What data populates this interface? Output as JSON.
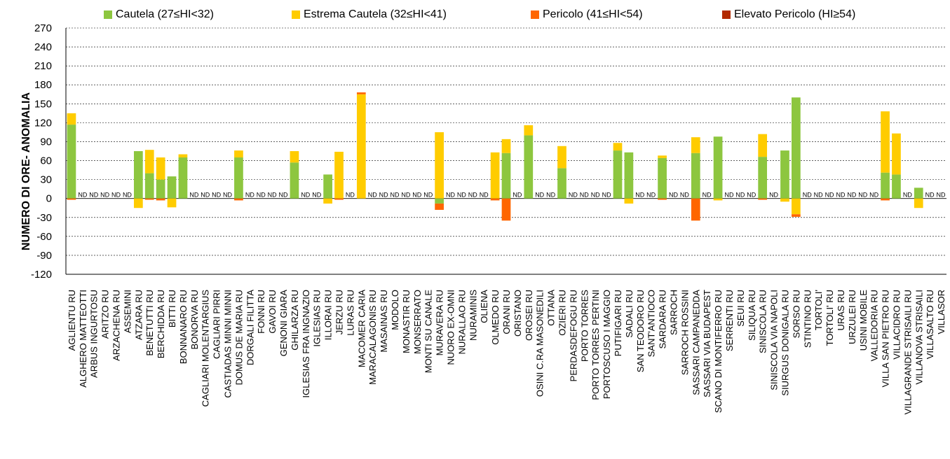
{
  "chart_data": {
    "type": "bar",
    "stacked": true,
    "ylabel": "NUMERO DI ORE- ANOMALIA",
    "ylim": [
      -120,
      270
    ],
    "yticks": [
      270,
      240,
      210,
      180,
      150,
      120,
      90,
      60,
      30,
      0,
      -30,
      -60,
      -90,
      -120
    ],
    "grid": true,
    "legend_position": "top",
    "nd_label": "ND",
    "series": [
      {
        "name": "Cautela (27≤HI<32)",
        "color": "#8DC63F"
      },
      {
        "name": "Estrema Cautela (32≤HI<41)",
        "color": "#FFCC00"
      },
      {
        "name": "Pericolo (41≤HI<54)",
        "color": "#FF6600"
      },
      {
        "name": "Elevato Pericolo (HI≥54)",
        "color": "#B22A00"
      }
    ],
    "categories": [
      {
        "name": "AGLIENTU RU",
        "pos": [
          117,
          18,
          0,
          0
        ],
        "neg": [
          0,
          0,
          2,
          0
        ]
      },
      {
        "name": "ALGHERO MATTEOTTI",
        "nd": true
      },
      {
        "name": "ARBUS INGURTOSU",
        "nd": true
      },
      {
        "name": "ARITZO RU",
        "nd": true
      },
      {
        "name": "ARZACHENA RU",
        "nd": true
      },
      {
        "name": "ASSEMINI",
        "nd": true
      },
      {
        "name": "ATZARA RU",
        "pos": [
          75,
          0,
          0,
          0
        ],
        "neg": [
          0,
          15,
          0,
          0
        ]
      },
      {
        "name": "BENETUTTI RU",
        "pos": [
          40,
          37,
          0,
          0
        ],
        "neg": [
          0,
          0,
          2,
          0
        ]
      },
      {
        "name": "BERCHIDDA RU",
        "pos": [
          30,
          35,
          0,
          0
        ],
        "neg": [
          0,
          0,
          3,
          0
        ]
      },
      {
        "name": "BITTI RU",
        "pos": [
          35,
          0,
          0,
          0
        ],
        "neg": [
          0,
          14,
          0,
          0
        ]
      },
      {
        "name": "BONNANARO RU",
        "pos": [
          65,
          5,
          0,
          0
        ],
        "neg": [
          0,
          0,
          0,
          0
        ]
      },
      {
        "name": "BONORVA RU",
        "nd": true
      },
      {
        "name": "CAGLIARI MOLENTARGIUS",
        "nd": true
      },
      {
        "name": "CAGLIARI PIRRI",
        "nd": true
      },
      {
        "name": "CASTIADAS MINNI MINNI",
        "nd": true
      },
      {
        "name": "DOMUS DE MARIA RU",
        "pos": [
          65,
          11,
          0,
          0
        ],
        "neg": [
          0,
          0,
          3,
          0
        ]
      },
      {
        "name": "DORGALI FILITTA",
        "nd": true
      },
      {
        "name": "FONNI RU",
        "nd": true
      },
      {
        "name": "GAVOI RU",
        "nd": true
      },
      {
        "name": "GENONI GIARA",
        "nd": true
      },
      {
        "name": "GHILARZA RU",
        "pos": [
          57,
          18,
          0,
          0
        ],
        "neg": [
          0,
          0,
          0,
          0
        ]
      },
      {
        "name": "IGLESIAS FRA INGNAZIO",
        "nd": true
      },
      {
        "name": "IGLESIAS RU",
        "nd": true
      },
      {
        "name": "ILLORAI RU",
        "pos": [
          38,
          0,
          0,
          0
        ],
        "neg": [
          0,
          8,
          0,
          0
        ]
      },
      {
        "name": "JERZU RU",
        "pos": [
          0,
          74,
          0,
          0
        ],
        "neg": [
          0,
          0,
          2,
          0
        ]
      },
      {
        "name": "LURAS RU",
        "nd": true
      },
      {
        "name": "MACOMER CARIA",
        "pos": [
          0,
          165,
          3,
          0
        ],
        "neg": [
          0,
          0,
          0,
          0
        ]
      },
      {
        "name": "MARACALAGONIS RU",
        "nd": true
      },
      {
        "name": "MASAINAS RU",
        "nd": true
      },
      {
        "name": "MODOLO",
        "nd": true
      },
      {
        "name": "MONASTIR RU",
        "nd": true
      },
      {
        "name": "MONSERRATO",
        "nd": true
      },
      {
        "name": "MONTI SU CANALE",
        "nd": true
      },
      {
        "name": "MURAVERA RU",
        "pos": [
          0,
          105,
          0,
          0
        ],
        "neg": [
          8,
          0,
          10,
          0
        ]
      },
      {
        "name": "NUORO EX-OMNI",
        "nd": true
      },
      {
        "name": "NURALLAO RU",
        "nd": true
      },
      {
        "name": "NURAMINIS",
        "nd": true
      },
      {
        "name": "OLIENA",
        "nd": true
      },
      {
        "name": "OLMEDO RU",
        "pos": [
          0,
          73,
          0,
          0
        ],
        "neg": [
          0,
          0,
          3,
          0
        ]
      },
      {
        "name": "ORANI RU",
        "pos": [
          72,
          22,
          0,
          0
        ],
        "neg": [
          0,
          0,
          35,
          0
        ]
      },
      {
        "name": "ORISTANO",
        "nd": true
      },
      {
        "name": "OROSEI RU",
        "pos": [
          100,
          16,
          0,
          0
        ],
        "neg": [
          0,
          0,
          0,
          0
        ]
      },
      {
        "name": "OSINI C.RA MASONEDILI",
        "nd": true
      },
      {
        "name": "OTTANA",
        "nd": true
      },
      {
        "name": "OZIERI RU",
        "pos": [
          48,
          35,
          0,
          0
        ],
        "neg": [
          0,
          0,
          0,
          0
        ]
      },
      {
        "name": "PERDASDEFOGU RU",
        "nd": true
      },
      {
        "name": "PORTO TORRES",
        "nd": true
      },
      {
        "name": "PORTO TORRES PERTINI",
        "nd": true
      },
      {
        "name": "PORTOSCUSO I MAGGIO",
        "nd": true
      },
      {
        "name": "PUTIFIGARI RU",
        "pos": [
          76,
          12,
          0,
          0
        ],
        "neg": [
          0,
          0,
          0,
          0
        ]
      },
      {
        "name": "SADALI RU",
        "pos": [
          73,
          0,
          0,
          0
        ],
        "neg": [
          0,
          8,
          0,
          0
        ]
      },
      {
        "name": "SAN TEODORO RU",
        "nd": true
      },
      {
        "name": "SANT'ANTIOCO",
        "nd": true
      },
      {
        "name": "SARDARA RU",
        "pos": [
          64,
          4,
          0,
          0
        ],
        "neg": [
          0,
          0,
          2,
          0
        ]
      },
      {
        "name": "SARROCH",
        "nd": true
      },
      {
        "name": "SARROCH ROSSINI",
        "nd": true
      },
      {
        "name": "SASSARI CAMPANEDDA",
        "pos": [
          72,
          25,
          0,
          0
        ],
        "neg": [
          0,
          0,
          35,
          0
        ]
      },
      {
        "name": "SASSARI VIA BUDAPEST",
        "nd": true
      },
      {
        "name": "SCANO DI MONTIFERRO RU",
        "pos": [
          98,
          0,
          0,
          0
        ],
        "neg": [
          0,
          3,
          0,
          0
        ]
      },
      {
        "name": "SERRENTI RU",
        "nd": true
      },
      {
        "name": "SEUI RU",
        "nd": true
      },
      {
        "name": "SILIQUA RU",
        "nd": true
      },
      {
        "name": "SINISCOLA RU",
        "pos": [
          66,
          36,
          0,
          0
        ],
        "neg": [
          0,
          0,
          2,
          0
        ]
      },
      {
        "name": "SINISCOLA VIA NAPOLI",
        "nd": true
      },
      {
        "name": "SIURGUS DONIGALA RU",
        "pos": [
          76,
          0,
          0,
          0
        ],
        "neg": [
          0,
          5,
          0,
          0
        ]
      },
      {
        "name": "SORSO RU",
        "pos": [
          160,
          0,
          0,
          0
        ],
        "neg": [
          0,
          25,
          4,
          0
        ]
      },
      {
        "name": "STINTINO RU",
        "nd": true
      },
      {
        "name": "TORTOLI'",
        "nd": true
      },
      {
        "name": "TORTOLI' RU",
        "nd": true
      },
      {
        "name": "URAS RU",
        "nd": true
      },
      {
        "name": "URZULEI RU",
        "nd": true
      },
      {
        "name": "USINI MOBILE",
        "nd": true
      },
      {
        "name": "VALLEDORIA RU",
        "nd": true
      },
      {
        "name": "VILLA SAN PIETRO RU",
        "pos": [
          41,
          97,
          0,
          0
        ],
        "neg": [
          0,
          0,
          3,
          0
        ]
      },
      {
        "name": "VILLACIDRO RU",
        "pos": [
          38,
          65,
          0,
          0
        ],
        "neg": [
          0,
          0,
          0,
          0
        ]
      },
      {
        "name": "VILLAGRANDE STRISAILI RU",
        "nd": true
      },
      {
        "name": "VILLANOVA STRISAILI",
        "pos": [
          17,
          0,
          0,
          0
        ],
        "neg": [
          0,
          15,
          0,
          0
        ]
      },
      {
        "name": "VILLASALTO RU",
        "nd": true
      },
      {
        "name": "VILLASOR",
        "nd": true
      }
    ]
  }
}
